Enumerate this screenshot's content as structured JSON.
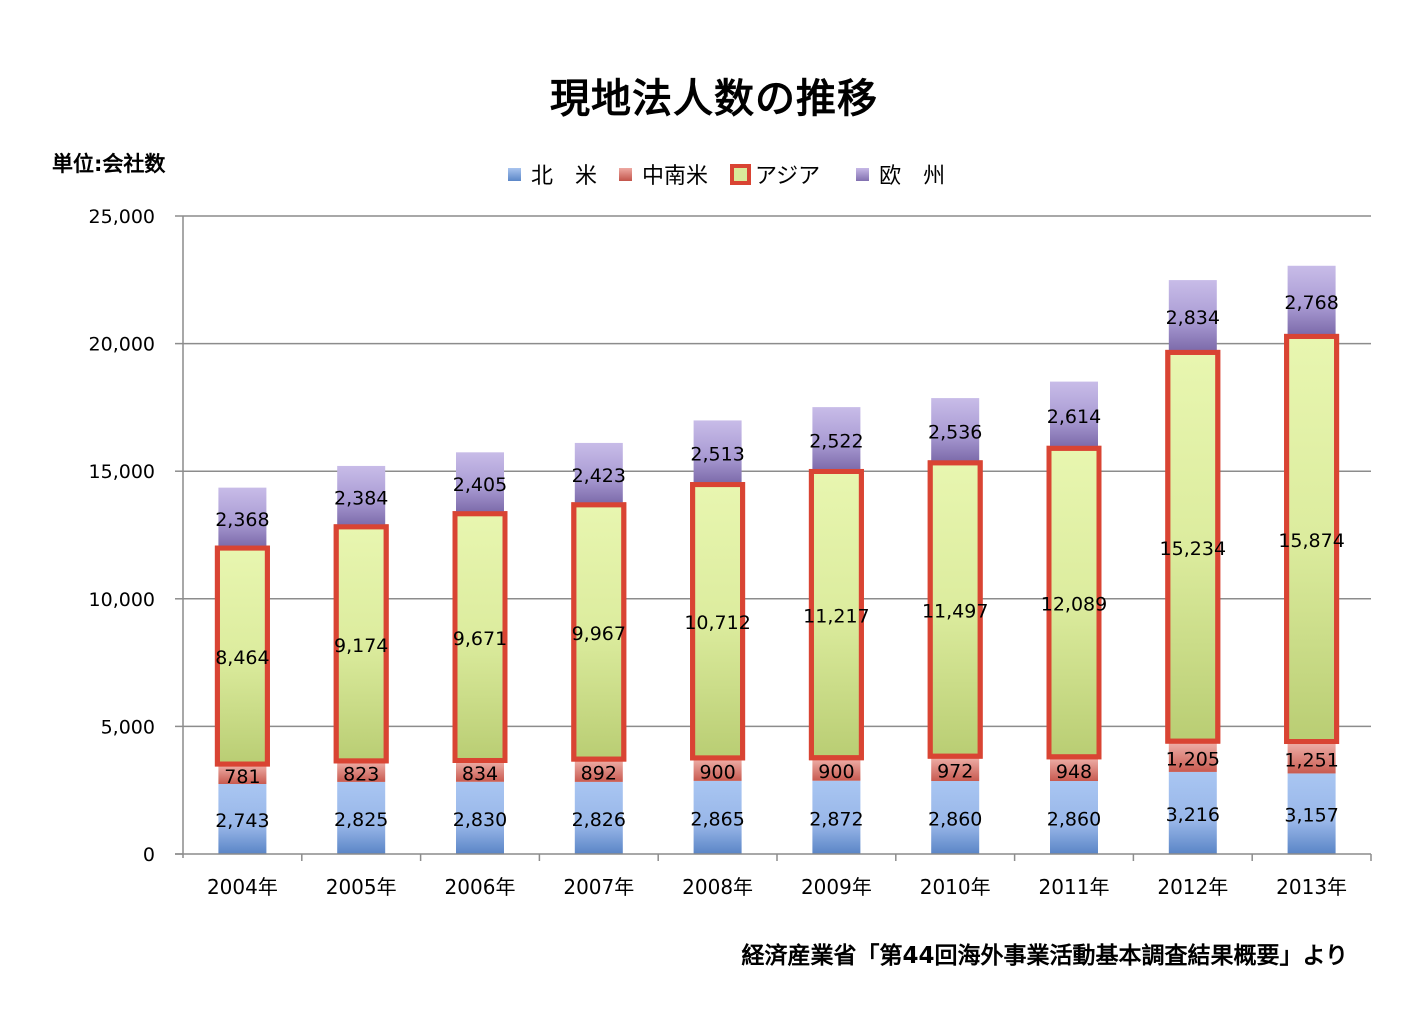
{
  "chart_data": {
    "type": "bar",
    "stacked": true,
    "title": "現地法人数の推移",
    "unit_label": "単位:会社数",
    "xlabel": "",
    "ylabel": "",
    "ylim": [
      0,
      25000
    ],
    "yticks": [
      0,
      5000,
      10000,
      15000,
      20000,
      25000
    ],
    "ytick_labels": [
      "0",
      "5,000",
      "10,000",
      "15,000",
      "20,000",
      "25,000"
    ],
    "grid": true,
    "legend_position": "top-center",
    "categories": [
      "2004年",
      "2005年",
      "2006年",
      "2007年",
      "2008年",
      "2009年",
      "2010年",
      "2011年",
      "2012年",
      "2013年"
    ],
    "series": [
      {
        "name": "北　米",
        "key": "na",
        "color": "#7fa3dc",
        "values": [
          2743,
          2825,
          2830,
          2826,
          2865,
          2872,
          2860,
          2860,
          3216,
          3157
        ],
        "labels": [
          "2,743",
          "2,825",
          "2,830",
          "2,826",
          "2,865",
          "2,872",
          "2,860",
          "2,860",
          "3,216",
          "3,157"
        ]
      },
      {
        "name": "中南米",
        "key": "la",
        "color": "#dd8a82",
        "values": [
          781,
          823,
          834,
          892,
          900,
          900,
          972,
          948,
          1205,
          1251
        ],
        "labels": [
          "781",
          "823",
          "834",
          "892",
          "900",
          "900",
          "972",
          "948",
          "1,205",
          "1,251"
        ]
      },
      {
        "name": "アジア",
        "key": "asia",
        "color": "#d9ea9a",
        "border_color": "#d94433",
        "values": [
          8464,
          9174,
          9671,
          9967,
          10712,
          11217,
          11497,
          12089,
          15234,
          15874
        ],
        "labels": [
          "8,464",
          "9,174",
          "9,671",
          "9,967",
          "10,712",
          "11,217",
          "11,497",
          "12,089",
          "15,234",
          "15,874"
        ]
      },
      {
        "name": "欧　州",
        "key": "eu",
        "color": "#a696d0",
        "values": [
          2368,
          2384,
          2405,
          2423,
          2513,
          2522,
          2536,
          2614,
          2834,
          2768
        ],
        "labels": [
          "2,368",
          "2,384",
          "2,405",
          "2,423",
          "2,513",
          "2,522",
          "2,536",
          "2,614",
          "2,834",
          "2,768"
        ]
      }
    ],
    "source_note": "経済産業省「第44回海外事業活動基本調査結果概要」より"
  }
}
